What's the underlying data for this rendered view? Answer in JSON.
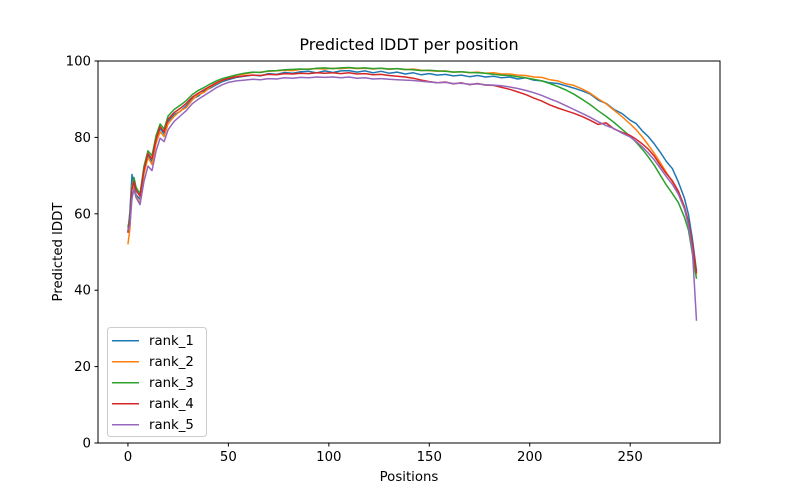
{
  "figure": {
    "title": "Predicted lDDT per position",
    "xlabel": "Positions",
    "ylabel": "Predicted lDDT"
  },
  "legend": {
    "entries": [
      "rank_1",
      "rank_2",
      "rank_3",
      "rank_4",
      "rank_5"
    ]
  },
  "colors": {
    "rank_1": "#1f77b4",
    "rank_2": "#ff7f0e",
    "rank_3": "#2ca02c",
    "rank_4": "#d62728",
    "rank_5": "#9467bd",
    "spine": "#000000",
    "legend_border": "#cccccc"
  },
  "chart_data": {
    "type": "line",
    "title": "Predicted lDDT per position",
    "xlabel": "Positions",
    "ylabel": "Predicted lDDT",
    "xlim": [
      -14.9,
      294.7
    ],
    "ylim": [
      0,
      100
    ],
    "x_ticks": [
      0,
      50,
      100,
      150,
      200,
      250
    ],
    "y_ticks": [
      0,
      20,
      40,
      60,
      80,
      100
    ],
    "grid": false,
    "legend_position": "lower left",
    "x": [
      0,
      1,
      2,
      3,
      4,
      6,
      8,
      10,
      12,
      14,
      16,
      18,
      20,
      23,
      26,
      29,
      32,
      35,
      38,
      41,
      44,
      47,
      50,
      54,
      58,
      62,
      66,
      70,
      74,
      78,
      82,
      86,
      90,
      94,
      98,
      102,
      106,
      110,
      114,
      118,
      122,
      126,
      130,
      134,
      138,
      142,
      146,
      150,
      154,
      158,
      162,
      166,
      170,
      174,
      178,
      182,
      186,
      190,
      194,
      198,
      202,
      206,
      210,
      214,
      218,
      222,
      226,
      230,
      234,
      238,
      242,
      246,
      250,
      253,
      256,
      259,
      262,
      265,
      268,
      271,
      274,
      277,
      279,
      281,
      283
    ],
    "series": [
      {
        "name": "rank_1",
        "color": "#1f77b4",
        "values": [
          55.2,
          60.5,
          70.3,
          68.0,
          65.0,
          63.8,
          72.0,
          75.5,
          73.6,
          79.8,
          82.3,
          80.9,
          84.2,
          86.0,
          86.8,
          88.3,
          90.1,
          90.8,
          92.2,
          92.9,
          93.8,
          94.6,
          95.1,
          95.7,
          96.0,
          96.3,
          96.1,
          96.7,
          96.5,
          97.0,
          96.8,
          97.2,
          97.3,
          96.9,
          97.4,
          97.0,
          97.4,
          97.5,
          97.1,
          97.4,
          96.9,
          97.3,
          96.8,
          97.1,
          96.6,
          96.9,
          96.4,
          96.7,
          96.3,
          96.5,
          96.1,
          96.3,
          95.9,
          96.2,
          95.8,
          96.0,
          95.6,
          95.8,
          95.3,
          95.6,
          95.0,
          94.8,
          94.3,
          94.1,
          93.5,
          92.9,
          92.2,
          91.4,
          89.8,
          88.9,
          87.3,
          86.2,
          84.5,
          83.6,
          81.7,
          80.2,
          78.3,
          76.1,
          73.7,
          71.8,
          68.3,
          64.1,
          59.8,
          53.2,
          45.0
        ]
      },
      {
        "name": "rank_2",
        "color": "#ff7f0e",
        "values": [
          52.0,
          56.0,
          67.5,
          66.5,
          64.6,
          62.8,
          70.5,
          74.8,
          72.9,
          78.5,
          81.5,
          80.2,
          83.6,
          85.5,
          86.9,
          87.8,
          89.8,
          91.2,
          91.8,
          93.2,
          94.1,
          94.9,
          95.5,
          96.3,
          96.6,
          97.0,
          97.1,
          97.3,
          97.4,
          97.6,
          97.5,
          97.8,
          97.9,
          98.0,
          97.9,
          98.1,
          98.0,
          98.2,
          98.0,
          98.1,
          97.9,
          98.1,
          97.8,
          98.0,
          97.7,
          97.9,
          97.6,
          97.5,
          97.3,
          97.4,
          97.1,
          97.2,
          96.9,
          97.1,
          96.8,
          96.9,
          96.6,
          96.6,
          96.3,
          96.2,
          95.8,
          95.7,
          95.1,
          94.8,
          94.0,
          93.6,
          92.7,
          91.6,
          90.1,
          88.8,
          87.1,
          85.4,
          83.5,
          82.0,
          80.1,
          78.0,
          75.8,
          73.4,
          70.8,
          68.4,
          65.6,
          61.4,
          57.6,
          51.7,
          44.0
        ]
      },
      {
        "name": "rank_3",
        "color": "#2ca02c",
        "values": [
          56.5,
          59.0,
          67.0,
          69.5,
          67.0,
          65.2,
          72.5,
          76.5,
          75.2,
          80.5,
          83.5,
          82.2,
          85.6,
          87.3,
          88.4,
          89.6,
          91.2,
          92.3,
          93.1,
          94.0,
          94.8,
          95.4,
          95.8,
          96.4,
          96.8,
          97.1,
          97.0,
          97.4,
          97.5,
          97.7,
          97.8,
          97.9,
          97.8,
          98.1,
          98.2,
          98.0,
          98.2,
          98.3,
          98.1,
          98.2,
          98.0,
          98.1,
          97.9,
          98.0,
          97.8,
          97.7,
          97.5,
          97.6,
          97.4,
          97.3,
          97.1,
          97.2,
          97.0,
          96.9,
          96.8,
          96.5,
          96.3,
          96.2,
          95.9,
          95.6,
          95.2,
          94.8,
          94.1,
          93.3,
          92.4,
          91.3,
          90.0,
          88.6,
          87.0,
          85.5,
          83.9,
          82.1,
          80.3,
          78.7,
          76.9,
          74.9,
          72.7,
          70.1,
          67.5,
          65.3,
          62.9,
          59.1,
          55.7,
          49.4,
          43.0
        ]
      },
      {
        "name": "rank_4",
        "color": "#d62728",
        "values": [
          55.0,
          58.5,
          66.5,
          68.5,
          66.2,
          64.6,
          71.5,
          75.8,
          74.4,
          79.5,
          82.8,
          81.5,
          84.8,
          86.5,
          87.6,
          88.9,
          90.5,
          91.6,
          92.5,
          93.4,
          94.3,
          95.0,
          95.4,
          95.9,
          96.1,
          96.3,
          96.2,
          96.5,
          96.4,
          96.7,
          96.6,
          96.8,
          96.7,
          96.9,
          96.8,
          96.9,
          96.7,
          96.9,
          96.6,
          96.7,
          96.4,
          96.5,
          96.2,
          96.0,
          95.8,
          95.5,
          95.0,
          94.6,
          94.3,
          94.5,
          94.0,
          94.3,
          93.8,
          94.1,
          93.7,
          93.6,
          93.1,
          92.6,
          91.9,
          91.2,
          90.3,
          89.5,
          88.5,
          87.7,
          87.0,
          86.3,
          85.5,
          84.5,
          83.4,
          83.8,
          82.2,
          81.3,
          80.5,
          79.5,
          78.3,
          76.9,
          75.1,
          72.7,
          70.5,
          68.6,
          65.9,
          61.9,
          57.9,
          51.9,
          44.5
        ]
      },
      {
        "name": "rank_5",
        "color": "#9467bd",
        "values": [
          55.5,
          57.0,
          64.0,
          66.5,
          64.3,
          62.4,
          68.5,
          72.5,
          71.3,
          76.5,
          79.8,
          78.9,
          82.0,
          84.2,
          85.6,
          87.0,
          88.8,
          90.0,
          91.0,
          92.0,
          93.0,
          93.8,
          94.4,
          94.8,
          95.0,
          95.2,
          95.1,
          95.4,
          95.3,
          95.6,
          95.5,
          95.7,
          95.6,
          95.8,
          95.7,
          95.8,
          95.6,
          95.8,
          95.5,
          95.6,
          95.3,
          95.4,
          95.2,
          95.1,
          95.0,
          94.9,
          94.7,
          94.5,
          94.3,
          94.4,
          94.1,
          94.2,
          93.9,
          94.0,
          93.8,
          93.7,
          93.5,
          93.2,
          92.8,
          92.3,
          91.7,
          91.0,
          90.1,
          89.3,
          88.3,
          87.3,
          86.3,
          85.3,
          84.1,
          83.1,
          82.3,
          81.1,
          80.1,
          78.9,
          77.5,
          75.9,
          74.1,
          71.9,
          69.7,
          67.7,
          65.1,
          61.3,
          56.9,
          50.0,
          32.0
        ]
      }
    ]
  }
}
